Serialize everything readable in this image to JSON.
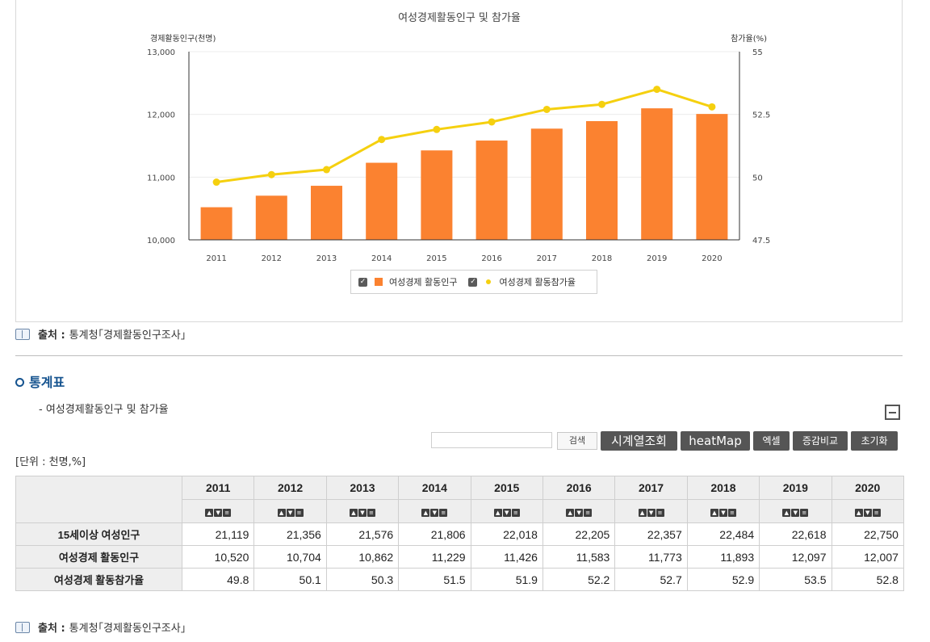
{
  "chart_data": {
    "type": "bar+line",
    "title": "여성경제활동인구 및 참가율",
    "categories": [
      "2011",
      "2012",
      "2013",
      "2014",
      "2015",
      "2016",
      "2017",
      "2018",
      "2019",
      "2020"
    ],
    "series": [
      {
        "name": "여성경제 활동인구",
        "type": "bar",
        "axis": "left",
        "color": "#fb8230",
        "values": [
          10520,
          10704,
          10862,
          11229,
          11426,
          11583,
          11773,
          11893,
          12097,
          12007
        ]
      },
      {
        "name": "여성경제 활동참가율",
        "type": "line",
        "axis": "right",
        "color": "#f5d00f",
        "values": [
          49.8,
          50.1,
          50.3,
          51.5,
          51.9,
          52.2,
          52.7,
          52.9,
          53.5,
          52.8
        ]
      }
    ],
    "ylabel": "경제활동인구(천명)",
    "y2label": "참가율(%)",
    "ylim": [
      10000,
      13000
    ],
    "y2lim": [
      47.5,
      55
    ],
    "yticks": [
      "10,000",
      "11,000",
      "12,000",
      "13,000"
    ],
    "y2ticks": [
      "47.5",
      "50",
      "52.5",
      "55"
    ],
    "legend": "bottom-center",
    "grid": true
  },
  "source": {
    "label": "출처 :",
    "text": "통계청｢경제활동인구조사｣"
  },
  "section": {
    "title": "통계표",
    "subtitle": "- 여성경제활동인구 및 참가율"
  },
  "toolbar": {
    "search_label": "검색",
    "timeseries_label": "시계열조회",
    "heatmap_label": "heatMap",
    "excel_label": "엑셀",
    "compare_label": "증감비교",
    "reset_label": "초기화"
  },
  "unit": "[단위 : 천명,%]",
  "table": {
    "years": [
      "2011",
      "2012",
      "2013",
      "2014",
      "2015",
      "2016",
      "2017",
      "2018",
      "2019",
      "2020"
    ],
    "rows": [
      {
        "label": "15세이상 여성인구",
        "values": [
          "21,119",
          "21,356",
          "21,576",
          "21,806",
          "22,018",
          "22,205",
          "22,357",
          "22,484",
          "22,618",
          "22,750"
        ]
      },
      {
        "label": "여성경제 활동인구",
        "values": [
          "10,520",
          "10,704",
          "10,862",
          "11,229",
          "11,426",
          "11,583",
          "11,773",
          "11,893",
          "12,097",
          "12,007"
        ]
      },
      {
        "label": "여성경제 활동참가율",
        "values": [
          "49.8",
          "50.1",
          "50.3",
          "51.5",
          "51.9",
          "52.2",
          "52.7",
          "52.9",
          "53.5",
          "52.8"
        ]
      }
    ]
  }
}
